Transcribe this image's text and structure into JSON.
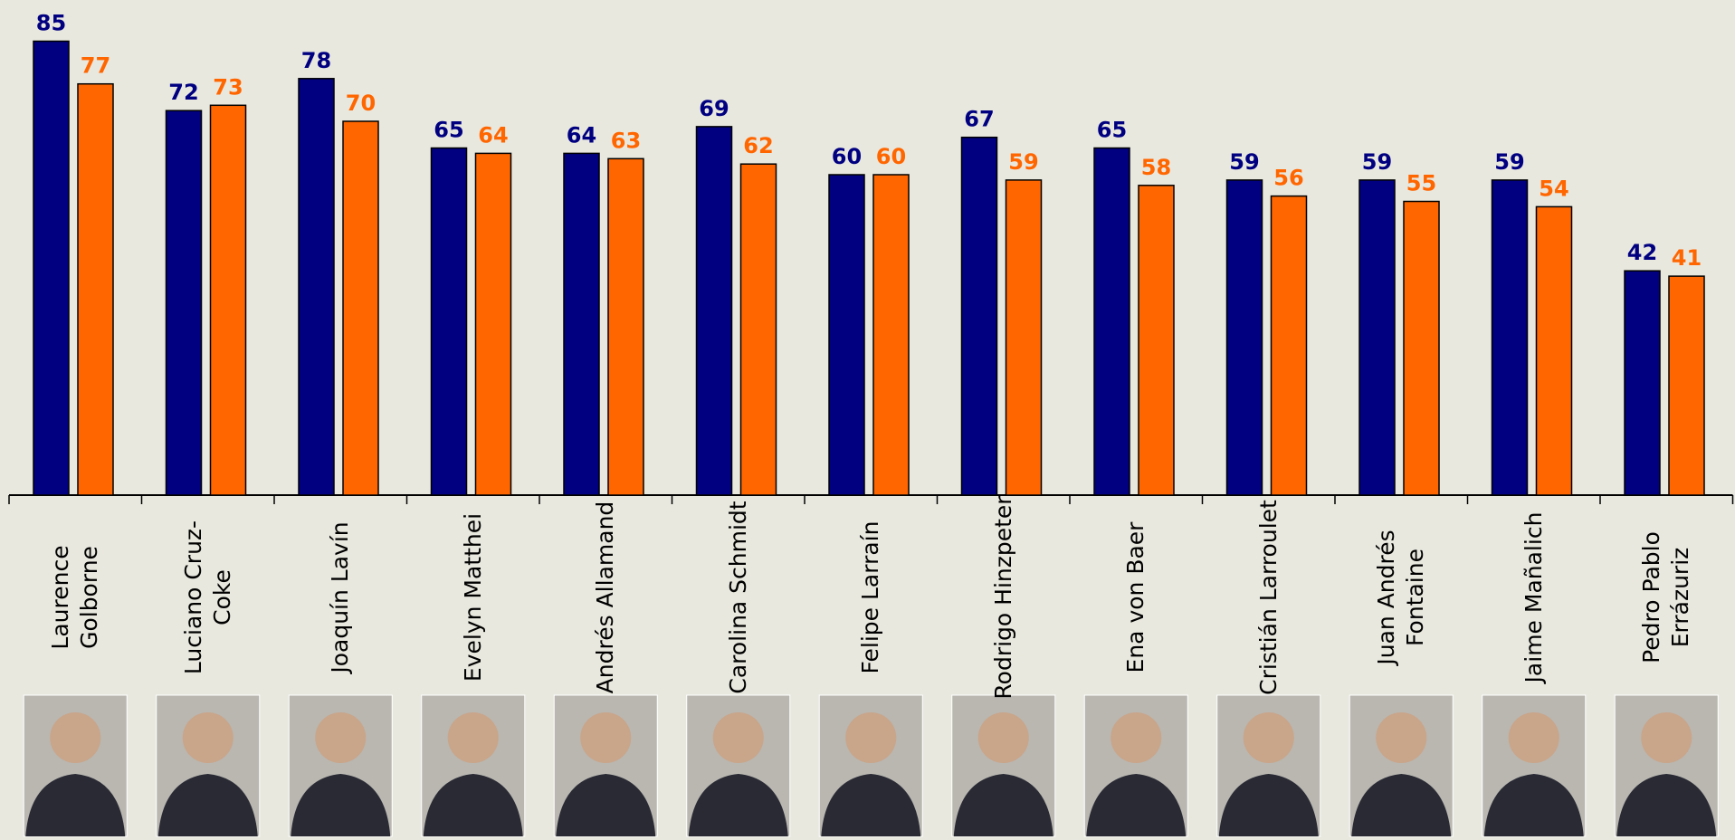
{
  "chart_data": {
    "type": "bar",
    "categories": [
      "Laurence Golborne",
      "Luciano Cruz-Coke",
      "Joaquín Lavín",
      "Evelyn Matthei",
      "Andrés Allamand",
      "Carolina Schmidt",
      "Felipe Larraín",
      "Rodrigo Hinzpeter",
      "Ena von Baer",
      "Cristián Larroulet",
      "Juan Andrés Fontaine",
      "Jaime Mañalich",
      "Pedro Pablo Errázuriz"
    ],
    "series": [
      {
        "color": "#000080",
        "values": [
          85,
          72,
          78,
          65,
          64,
          69,
          60,
          67,
          65,
          59,
          59,
          59,
          42
        ]
      },
      {
        "color": "#ff6600",
        "values": [
          77,
          73,
          70,
          64,
          63,
          62,
          60,
          59,
          58,
          56,
          55,
          54,
          41
        ]
      }
    ]
  }
}
